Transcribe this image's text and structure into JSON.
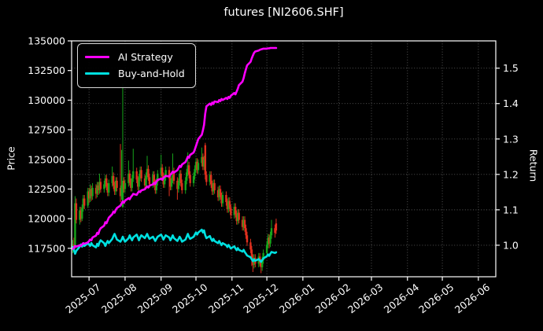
{
  "chart_data": {
    "type": "candlestick+line",
    "title": "futures [NI2606.SHF]",
    "legend_position": "upper left",
    "grid": "dotted",
    "colors": {
      "background": "#000000",
      "text": "#ffffff",
      "frame": "#ffffff",
      "grid": "#9a9a9a",
      "candle_up": "#16a51b",
      "candle_down": "#e0301e"
    },
    "axes": {
      "x": {
        "start": "2025-06-16",
        "end": "2026-06-16",
        "ticks": [
          "2025-07",
          "2025-08",
          "2025-09",
          "2025-10",
          "2025-11",
          "2025-12",
          "2026-01",
          "2026-02",
          "2026-03",
          "2026-04",
          "2026-05",
          "2026-06"
        ]
      },
      "price": {
        "label": "Price",
        "min": 115100,
        "max": 135000,
        "ticks": [
          117500,
          120000,
          122500,
          125000,
          127500,
          130000,
          132500,
          135000
        ]
      },
      "ret": {
        "label": "Return",
        "min": 0.911,
        "max": 1.577,
        "ticks": [
          "1.0",
          "1.1",
          "1.2",
          "1.3",
          "1.4",
          "1.5"
        ]
      }
    },
    "dates": [
      "06-17",
      "06-18",
      "06-19",
      "06-20",
      "06-23",
      "06-24",
      "06-25",
      "06-26",
      "06-27",
      "06-30",
      "07-01",
      "07-02",
      "07-03",
      "07-04",
      "07-07",
      "07-08",
      "07-09",
      "07-10",
      "07-11",
      "07-14",
      "07-15",
      "07-16",
      "07-17",
      "07-18",
      "07-21",
      "07-22",
      "07-23",
      "07-24",
      "07-25",
      "07-28",
      "07-29",
      "07-30",
      "07-31",
      "08-01",
      "08-04",
      "08-05",
      "08-06",
      "08-07",
      "08-08",
      "08-11",
      "08-12",
      "08-13",
      "08-14",
      "08-15",
      "08-18",
      "08-19",
      "08-20",
      "08-21",
      "08-22",
      "08-25",
      "08-26",
      "08-27",
      "08-28",
      "08-29",
      "09-01",
      "09-02",
      "09-03",
      "09-04",
      "09-05",
      "09-08",
      "09-09",
      "09-10",
      "09-11",
      "09-12",
      "09-15",
      "09-16",
      "09-17",
      "09-18",
      "09-19",
      "09-22",
      "09-23",
      "09-24",
      "09-25",
      "09-26",
      "09-29",
      "09-30",
      "10-01",
      "10-02",
      "10-03",
      "10-06",
      "10-07",
      "10-08",
      "10-09",
      "10-10",
      "10-13",
      "10-14",
      "10-15",
      "10-16",
      "10-17",
      "10-20",
      "10-21",
      "10-22",
      "10-23",
      "10-24",
      "10-27",
      "10-28",
      "10-29",
      "10-30",
      "10-31",
      "11-03",
      "11-04",
      "11-05",
      "11-06",
      "11-07",
      "11-10",
      "11-11",
      "11-12",
      "11-13",
      "11-14",
      "11-17",
      "11-18",
      "11-19",
      "11-20",
      "11-21",
      "11-24",
      "11-25",
      "11-26",
      "11-27",
      "11-28",
      "12-01",
      "12-02",
      "12-03",
      "12-04",
      "12-05",
      "12-08",
      "12-09"
    ],
    "candles": [
      [
        117500,
        118200,
        117100,
        117800
      ],
      [
        117800,
        118400,
        117200,
        117600
      ],
      [
        117600,
        121900,
        117400,
        121300
      ],
      [
        121300,
        121700,
        119600,
        119900
      ],
      [
        119900,
        121000,
        119500,
        120700
      ],
      [
        120700,
        121000,
        119700,
        120000
      ],
      [
        120000,
        121200,
        119800,
        120900
      ],
      [
        120900,
        122000,
        120600,
        121700
      ],
      [
        121700,
        122000,
        120800,
        121100
      ],
      [
        121100,
        122600,
        120900,
        122300
      ],
      [
        122300,
        122600,
        121300,
        121700
      ],
      [
        121700,
        122900,
        121400,
        122500
      ],
      [
        122500,
        122800,
        121500,
        121900
      ],
      [
        121900,
        123000,
        121600,
        122600
      ],
      [
        122600,
        122900,
        121700,
        122100
      ],
      [
        122100,
        123100,
        121800,
        122800
      ],
      [
        122800,
        123100,
        122000,
        122400
      ],
      [
        122400,
        123800,
        122100,
        123100
      ],
      [
        123100,
        123400,
        122200,
        122500
      ],
      [
        122500,
        123200,
        122200,
        122900
      ],
      [
        122900,
        123700,
        122600,
        123400
      ],
      [
        123400,
        123700,
        122400,
        122700
      ],
      [
        122700,
        123000,
        121900,
        122200
      ],
      [
        122200,
        123300,
        121900,
        123000
      ],
      [
        123000,
        124400,
        122700,
        123600
      ],
      [
        123600,
        123900,
        122500,
        122800
      ],
      [
        122800,
        123100,
        122000,
        122300
      ],
      [
        122300,
        123500,
        122000,
        123200
      ],
      [
        123200,
        123500,
        122300,
        122600
      ],
      [
        122600,
        126300,
        121400,
        121900
      ],
      [
        121900,
        125800,
        121600,
        122800
      ],
      [
        121000,
        131400,
        120900,
        123200
      ],
      [
        123200,
        123500,
        122200,
        122500
      ],
      [
        122500,
        123300,
        122200,
        123000
      ],
      [
        123000,
        124900,
        122700,
        123800
      ],
      [
        123800,
        124100,
        122800,
        123100
      ],
      [
        123100,
        123400,
        122300,
        122600
      ],
      [
        122600,
        123700,
        122300,
        123400
      ],
      [
        123400,
        125900,
        123100,
        124000
      ],
      [
        124000,
        124300,
        123000,
        123300
      ],
      [
        123300,
        123600,
        122400,
        122700
      ],
      [
        122700,
        123800,
        122400,
        123500
      ],
      [
        123500,
        124400,
        123200,
        124100
      ],
      [
        124100,
        124400,
        123100,
        123400
      ],
      [
        123400,
        123700,
        122500,
        122800
      ],
      [
        122800,
        123900,
        122500,
        123600
      ],
      [
        123600,
        125300,
        123300,
        124200
      ],
      [
        124200,
        124500,
        123200,
        123500
      ],
      [
        123500,
        123800,
        122600,
        122900
      ],
      [
        122900,
        124000,
        122600,
        123700
      ],
      [
        123700,
        124000,
        122700,
        123000
      ],
      [
        123000,
        123300,
        122100,
        122400
      ],
      [
        122400,
        123400,
        122100,
        123100
      ],
      [
        123100,
        124100,
        122800,
        123800
      ],
      [
        123800,
        125400,
        123500,
        124300
      ],
      [
        124300,
        124600,
        123300,
        123600
      ],
      [
        123600,
        123900,
        122600,
        122900
      ],
      [
        122900,
        123800,
        122600,
        123500
      ],
      [
        123500,
        124400,
        123200,
        124100
      ],
      [
        124100,
        124400,
        121900,
        123400
      ],
      [
        123400,
        123700,
        122400,
        122700
      ],
      [
        122700,
        123600,
        122400,
        123300
      ],
      [
        123300,
        125500,
        123000,
        124000
      ],
      [
        124000,
        124300,
        122900,
        123200
      ],
      [
        123200,
        123500,
        121600,
        122500
      ],
      [
        122500,
        123400,
        122200,
        123100
      ],
      [
        123100,
        124100,
        122800,
        123800
      ],
      [
        123800,
        124100,
        122700,
        123000
      ],
      [
        123000,
        123300,
        122100,
        122400
      ],
      [
        122400,
        123500,
        122100,
        123200
      ],
      [
        123200,
        124200,
        122900,
        123900
      ],
      [
        123900,
        125600,
        123600,
        124500
      ],
      [
        124500,
        124800,
        123400,
        123700
      ],
      [
        123700,
        124000,
        122700,
        123000
      ],
      [
        123000,
        123900,
        122700,
        123600
      ],
      [
        123600,
        124500,
        123300,
        124200
      ],
      [
        124200,
        125100,
        123900,
        124800
      ],
      [
        124800,
        125100,
        123800,
        124100
      ],
      [
        124100,
        125000,
        123800,
        124700
      ],
      [
        124700,
        126000,
        124400,
        125200
      ],
      [
        125200,
        125500,
        124100,
        124400
      ],
      [
        124400,
        125300,
        124100,
        125000
      ],
      [
        126200,
        126400,
        123300,
        123700
      ],
      [
        123700,
        124000,
        122800,
        123100
      ],
      [
        123100,
        124000,
        122800,
        123700
      ],
      [
        123700,
        124000,
        122600,
        122900
      ],
      [
        122900,
        123200,
        122000,
        122300
      ],
      [
        122300,
        123300,
        122000,
        123000
      ],
      [
        123000,
        123300,
        122100,
        122400
      ],
      [
        122400,
        122700,
        121500,
        121800
      ],
      [
        121800,
        122800,
        121500,
        122500
      ],
      [
        122500,
        122800,
        121600,
        121900
      ],
      [
        121900,
        122200,
        121000,
        121300
      ],
      [
        121300,
        122300,
        121000,
        122000
      ],
      [
        122000,
        122300,
        121100,
        121400
      ],
      [
        121400,
        121700,
        120500,
        120800
      ],
      [
        120800,
        121800,
        120500,
        121500
      ],
      [
        121500,
        121800,
        120600,
        120900
      ],
      [
        120900,
        121200,
        120000,
        120300
      ],
      [
        120300,
        121300,
        120000,
        121000
      ],
      [
        121000,
        121300,
        120100,
        120400
      ],
      [
        120400,
        120700,
        119500,
        119800
      ],
      [
        119800,
        120800,
        119500,
        120500
      ],
      [
        120500,
        120800,
        119600,
        119900
      ],
      [
        119900,
        120200,
        119000,
        119300
      ],
      [
        119300,
        120200,
        119000,
        119900
      ],
      [
        119900,
        120200,
        118900,
        119200
      ],
      [
        119200,
        119500,
        118300,
        118600
      ],
      [
        118600,
        118900,
        117700,
        118000
      ],
      [
        118000,
        118300,
        117100,
        117400
      ],
      [
        117400,
        117700,
        116000,
        116700
      ],
      [
        116700,
        117000,
        115500,
        116100
      ],
      [
        116100,
        117000,
        115800,
        116700
      ],
      [
        116700,
        117000,
        115900,
        116200
      ],
      [
        116200,
        117100,
        115900,
        116800
      ],
      [
        116800,
        117100,
        116000,
        116300
      ],
      [
        116300,
        116600,
        115400,
        115900
      ],
      [
        115900,
        116800,
        115600,
        116500
      ],
      [
        116500,
        117400,
        116200,
        117100
      ],
      [
        117100,
        118100,
        116800,
        117800
      ],
      [
        117800,
        118700,
        117500,
        118400
      ],
      [
        118400,
        118700,
        117500,
        117900
      ],
      [
        117900,
        118900,
        117600,
        118600
      ],
      [
        118600,
        119900,
        118300,
        119200
      ],
      [
        119200,
        119500,
        118400,
        118800
      ],
      [
        119600,
        120000,
        118700,
        119000
      ]
    ],
    "series": [
      {
        "name": "AI Strategy",
        "color": "#ff00ff",
        "axis": "ret",
        "values": [
          0.99,
          0.992,
          0.998,
          0.996,
          1.0,
          0.998,
          1.002,
          1.006,
          1.004,
          1.008,
          1.012,
          1.016,
          1.014,
          1.022,
          1.027,
          1.035,
          1.032,
          1.042,
          1.048,
          1.055,
          1.065,
          1.062,
          1.07,
          1.078,
          1.088,
          1.095,
          1.092,
          1.1,
          1.105,
          1.112,
          1.118,
          1.124,
          1.12,
          1.126,
          1.133,
          1.13,
          1.136,
          1.14,
          1.145,
          1.142,
          1.148,
          1.152,
          1.15,
          1.155,
          1.158,
          1.162,
          1.166,
          1.163,
          1.168,
          1.172,
          1.176,
          1.173,
          1.18,
          1.184,
          1.188,
          1.185,
          1.19,
          1.193,
          1.196,
          1.194,
          1.199,
          1.203,
          1.208,
          1.205,
          1.212,
          1.218,
          1.224,
          1.221,
          1.228,
          1.235,
          1.242,
          1.25,
          1.247,
          1.255,
          1.262,
          1.27,
          1.28,
          1.29,
          1.3,
          1.312,
          1.325,
          1.34,
          1.372,
          1.392,
          1.4,
          1.396,
          1.403,
          1.399,
          1.406,
          1.404,
          1.41,
          1.407,
          1.413,
          1.41,
          1.416,
          1.413,
          1.419,
          1.416,
          1.422,
          1.43,
          1.426,
          1.434,
          1.442,
          1.452,
          1.462,
          1.472,
          1.485,
          1.497,
          1.508,
          1.518,
          1.528,
          1.536,
          1.543,
          1.547,
          1.55,
          1.552,
          1.553,
          1.554,
          1.555,
          1.555,
          1.556,
          1.556,
          1.557,
          1.557,
          1.557,
          1.557
        ]
      },
      {
        "name": "Buy-and-Hold",
        "color": "#00e0e0",
        "axis": "ret",
        "values": [
          0.995,
          0.986,
          0.976,
          0.984,
          0.996,
          1.002,
          0.996,
          1.004,
          0.998,
          1.006,
          1.002,
          0.998,
          1.006,
          1.0,
          0.994,
          1.004,
          0.998,
          1.008,
          1.014,
          1.006,
          0.998,
          1.006,
          1.012,
          1.006,
          1.018,
          1.026,
          1.032,
          1.024,
          1.016,
          1.01,
          1.016,
          1.024,
          1.016,
          1.01,
          1.02,
          1.028,
          1.02,
          1.014,
          1.022,
          1.03,
          1.022,
          1.014,
          1.022,
          1.028,
          1.02,
          1.026,
          1.032,
          1.024,
          1.018,
          1.024,
          1.018,
          1.012,
          1.018,
          1.024,
          1.03,
          1.024,
          1.016,
          1.022,
          1.028,
          1.022,
          1.014,
          1.02,
          1.028,
          1.02,
          1.012,
          1.018,
          1.024,
          1.018,
          1.01,
          1.016,
          1.024,
          1.032,
          1.024,
          1.018,
          1.024,
          1.03,
          1.036,
          1.03,
          1.036,
          1.044,
          1.036,
          1.042,
          1.028,
          1.02,
          1.026,
          1.018,
          1.012,
          1.018,
          1.012,
          1.006,
          1.012,
          1.006,
          1.0,
          1.006,
          1.0,
          0.995,
          1.001,
          0.996,
          0.991,
          0.997,
          0.991,
          0.986,
          0.992,
          0.987,
          0.982,
          0.987,
          0.981,
          0.976,
          0.971,
          0.966,
          0.96,
          0.955,
          0.96,
          0.956,
          0.961,
          0.957,
          0.953,
          0.958,
          0.963,
          0.969,
          0.974,
          0.97,
          0.976,
          0.981,
          0.978,
          0.98
        ]
      }
    ]
  }
}
